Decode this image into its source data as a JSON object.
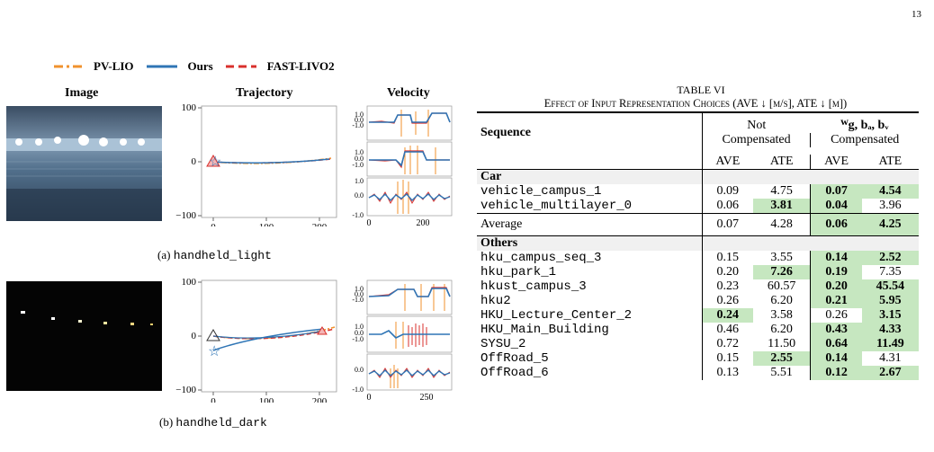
{
  "page_number": "13",
  "figure": {
    "legend": [
      {
        "label": "PV-LIO",
        "color": "#f0922e",
        "style": "dashdot"
      },
      {
        "label": "Ours",
        "color": "#2f75b5",
        "style": "solid"
      },
      {
        "label": "FAST-LIVO2",
        "color": "#d9302c",
        "style": "dashed"
      }
    ],
    "column_headers": {
      "image": "Image",
      "trajectory": "Trajectory",
      "velocity": "Velocity"
    },
    "rows": [
      {
        "caption_prefix": "(a)",
        "caption_name": "handheld_light",
        "traj_yticks": [
          "100",
          "0",
          "−100"
        ],
        "traj_xticks": [
          "0",
          "100",
          "200"
        ],
        "vel_yticks": [
          "1.0",
          "0.0",
          "-1.0"
        ],
        "vel_xticks": [
          "0",
          "200"
        ]
      },
      {
        "caption_prefix": "(b)",
        "caption_name": "handheld_dark",
        "traj_yticks": [
          "100",
          "0",
          "−100"
        ],
        "traj_xticks": [
          "0",
          "100",
          "200"
        ],
        "vel_yticks": [
          "1.0",
          "0.0",
          "-1.0"
        ],
        "vel_xticks": [
          "0",
          "250"
        ]
      }
    ]
  },
  "table": {
    "title": "TABLE VI",
    "subtitle_prefix": "Effect of Input Representation Choices (AVE ↓ [m/s], ATE ↓ [m])",
    "header": {
      "sequence": "Sequence",
      "group1_line1": "Not",
      "group1_line2": "Compensated",
      "group2_line1": "ᵂg, bₐ, bᵥ",
      "group2_line2": "Compensated",
      "cols": [
        "AVE",
        "ATE",
        "AVE",
        "ATE"
      ]
    },
    "groups": [
      {
        "name": "Car",
        "rows": [
          {
            "seq": "vehicle_campus_1",
            "v": [
              "0.09",
              "4.75",
              "0.07",
              "4.54"
            ]
          },
          {
            "seq": "vehicle_multilayer_0",
            "v": [
              "0.06",
              "3.81",
              "0.04",
              "3.96"
            ]
          }
        ],
        "average": {
          "label": "Average",
          "v": [
            "0.07",
            "4.28",
            "0.06",
            "4.25"
          ]
        }
      },
      {
        "name": "Others",
        "rows": [
          {
            "seq": "hku_campus_seq_3",
            "v": [
              "0.15",
              "3.55",
              "0.14",
              "2.52"
            ]
          },
          {
            "seq": "hku_park_1",
            "v": [
              "0.20",
              "7.26",
              "0.19",
              "7.35"
            ]
          },
          {
            "seq": "hkust_campus_3",
            "v": [
              "0.23",
              "60.57",
              "0.20",
              "45.54"
            ]
          },
          {
            "seq": "hku2",
            "v": [
              "0.26",
              "6.20",
              "0.21",
              "5.95"
            ]
          },
          {
            "seq": "HKU_Lecture_Center_2",
            "v": [
              "0.24",
              "3.58",
              "0.26",
              "3.15"
            ]
          },
          {
            "seq": "HKU_Main_Building",
            "v": [
              "0.46",
              "6.20",
              "0.43",
              "4.33"
            ]
          },
          {
            "seq": "SYSU_2",
            "v": [
              "0.72",
              "11.50",
              "0.64",
              "11.49"
            ]
          },
          {
            "seq": "OffRoad_5",
            "v": [
              "0.15",
              "2.55",
              "0.14",
              "4.31"
            ]
          },
          {
            "seq": "OffRoad_6",
            "v": [
              "0.13",
              "5.51",
              "0.12",
              "2.67"
            ]
          }
        ]
      }
    ],
    "highlight_color": "#c6e7c0"
  }
}
